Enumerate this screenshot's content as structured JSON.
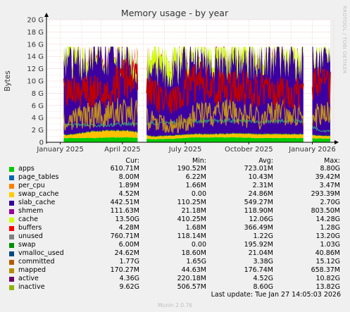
{
  "chart_data": {
    "type": "area",
    "title": "Memory usage - by year",
    "ylabel": "Bytes",
    "xlabel": "",
    "ylim": [
      0,
      20
    ],
    "y_unit": "G",
    "yticks": [
      "0",
      "2 G",
      "4 G",
      "6 G",
      "8 G",
      "10 G",
      "12 G",
      "14 G",
      "16 G",
      "18 G",
      "20 G"
    ],
    "x_tick_labels": [
      "January 2025",
      "April 2025",
      "July 2025",
      "October 2025",
      "January 2026"
    ],
    "grid": true,
    "stacked_series_order": [
      "apps",
      "page_tables",
      "per_cpu",
      "swap_cache",
      "slab_cache",
      "shmem",
      "cache",
      "buffers",
      "unused",
      "swap"
    ],
    "line_series_order": [
      "vmalloc_used",
      "committed",
      "mapped",
      "active",
      "inactive"
    ],
    "x_months": [
      "2025-01",
      "2025-02",
      "2025-03",
      "2025-04",
      "2025-05",
      "2025-06",
      "2025-07",
      "2025-08",
      "2025-09",
      "2025-10",
      "2025-11",
      "2025-12",
      "2026-01"
    ],
    "approx_series_gb": {
      "apps": [
        0.7,
        0.7,
        0.8,
        0.8,
        0.5,
        0.6,
        0.8,
        0.8,
        0.8,
        0.7,
        0.7,
        0.7,
        0.6
      ],
      "slab_cache": [
        0.5,
        1.0,
        1.1,
        1.0,
        0.4,
        0.5,
        0.5,
        0.5,
        0.6,
        0.6,
        0.6,
        0.6,
        0.4
      ],
      "shmem": [
        0.1,
        0.1,
        0.1,
        0.1,
        0.1,
        0.1,
        0.1,
        0.1,
        0.1,
        0.1,
        0.1,
        0.1,
        0.1
      ],
      "cache": [
        12.0,
        12.0,
        12.5,
        11.0,
        10.0,
        11.0,
        12.0,
        11.5,
        11.0,
        12.0,
        12.5,
        12.0,
        13.5
      ],
      "unused": [
        1.8,
        1.3,
        0.6,
        1.6,
        2.5,
        2.5,
        1.3,
        2.0,
        2.5,
        1.8,
        1.2,
        1.8,
        0.8
      ],
      "swap": [
        0.0,
        0.2,
        0.4,
        0.6,
        0.2,
        0.1,
        0.1,
        0.1,
        0.1,
        0.2,
        0.2,
        0.1,
        0.0
      ],
      "active": [
        3.5,
        4.5,
        4.8,
        5.0,
        3.5,
        2.5,
        4.5,
        4.5,
        5.0,
        4.0,
        5.0,
        4.5,
        4.4
      ],
      "inactive": [
        8.0,
        8.0,
        8.5,
        11.5,
        7.5,
        7.0,
        10.0,
        9.0,
        9.0,
        8.5,
        8.0,
        8.0,
        9.6
      ],
      "committed": [
        2.8,
        2.8,
        2.8,
        3.0,
        3.2,
        3.2,
        3.5,
        3.5,
        3.6,
        3.4,
        3.5,
        3.5,
        1.8
      ]
    },
    "gaps": [
      [
        "2025-04-24",
        "2025-05-05"
      ],
      [
        "2025-12-20",
        "2025-12-31"
      ]
    ]
  },
  "legend": {
    "headers": {
      "cur": "Cur:",
      "min": "Min:",
      "avg": "Avg:",
      "max": "Max:"
    },
    "rows": [
      {
        "name": "apps",
        "color": "#00cc00",
        "cur": "610.71M",
        "min": "190.52M",
        "avg": "723.01M",
        "max": "8.80G"
      },
      {
        "name": "page_tables",
        "color": "#0066b3",
        "cur": "8.00M",
        "min": "6.22M",
        "avg": "10.43M",
        "max": "39.42M"
      },
      {
        "name": "per_cpu",
        "color": "#ff8000",
        "cur": "1.89M",
        "min": "1.66M",
        "avg": "2.31M",
        "max": "3.47M"
      },
      {
        "name": "swap_cache",
        "color": "#ffcc00",
        "cur": "4.52M",
        "min": "0.00",
        "avg": "24.86M",
        "max": "293.39M"
      },
      {
        "name": "slab_cache",
        "color": "#330099",
        "cur": "442.51M",
        "min": "110.25M",
        "avg": "549.27M",
        "max": "2.70G"
      },
      {
        "name": "shmem",
        "color": "#990099",
        "cur": "111.63M",
        "min": "21.18M",
        "avg": "118.90M",
        "max": "803.50M"
      },
      {
        "name": "cache",
        "color": "#ccff00",
        "cur": "13.50G",
        "min": "410.25M",
        "avg": "12.06G",
        "max": "14.28G"
      },
      {
        "name": "buffers",
        "color": "#ff0000",
        "cur": "4.28M",
        "min": "1.68M",
        "avg": "366.49M",
        "max": "1.28G"
      },
      {
        "name": "unused",
        "color": "#808080",
        "cur": "760.71M",
        "min": "118.14M",
        "avg": "1.22G",
        "max": "13.20G"
      },
      {
        "name": "swap",
        "color": "#008f00",
        "cur": "6.00M",
        "min": "0.00",
        "avg": "195.92M",
        "max": "1.03G"
      },
      {
        "name": "vmalloc_used",
        "color": "#00487d",
        "cur": "24.62M",
        "min": "18.60M",
        "avg": "21.04M",
        "max": "40.86M"
      },
      {
        "name": "committed",
        "color": "#b35a00",
        "cur": "1.77G",
        "min": "1.65G",
        "avg": "3.38G",
        "max": "15.12G"
      },
      {
        "name": "mapped",
        "color": "#b38f00",
        "cur": "170.27M",
        "min": "44.63M",
        "avg": "176.74M",
        "max": "658.37M"
      },
      {
        "name": "active",
        "color": "#6b006b",
        "cur": "4.36G",
        "min": "220.18M",
        "avg": "4.52G",
        "max": "10.82G"
      },
      {
        "name": "inactive",
        "color": "#8fb300",
        "cur": "9.62G",
        "min": "506.57M",
        "avg": "8.60G",
        "max": "13.82G"
      }
    ]
  },
  "colors": {
    "background": "#f0f0f0",
    "plot_bg": "#ffffff",
    "grid": "#e0a0a0",
    "apps": "#00cc00",
    "slab_cache": "#ffc000",
    "shmem": "#008000",
    "cache": "#3d00a0",
    "unused": "#ccff00",
    "swap": "#ff0000",
    "active": "#c0901a",
    "inactive": "#c00000",
    "committed": "#2d8f8f",
    "mapped": "#b38f00"
  },
  "last_update": "Last update: Tue Jan 27 14:05:03 2026",
  "footer": "Munin 2.0.76",
  "side_text": "RRDTOOL / TOBI OETIKER"
}
